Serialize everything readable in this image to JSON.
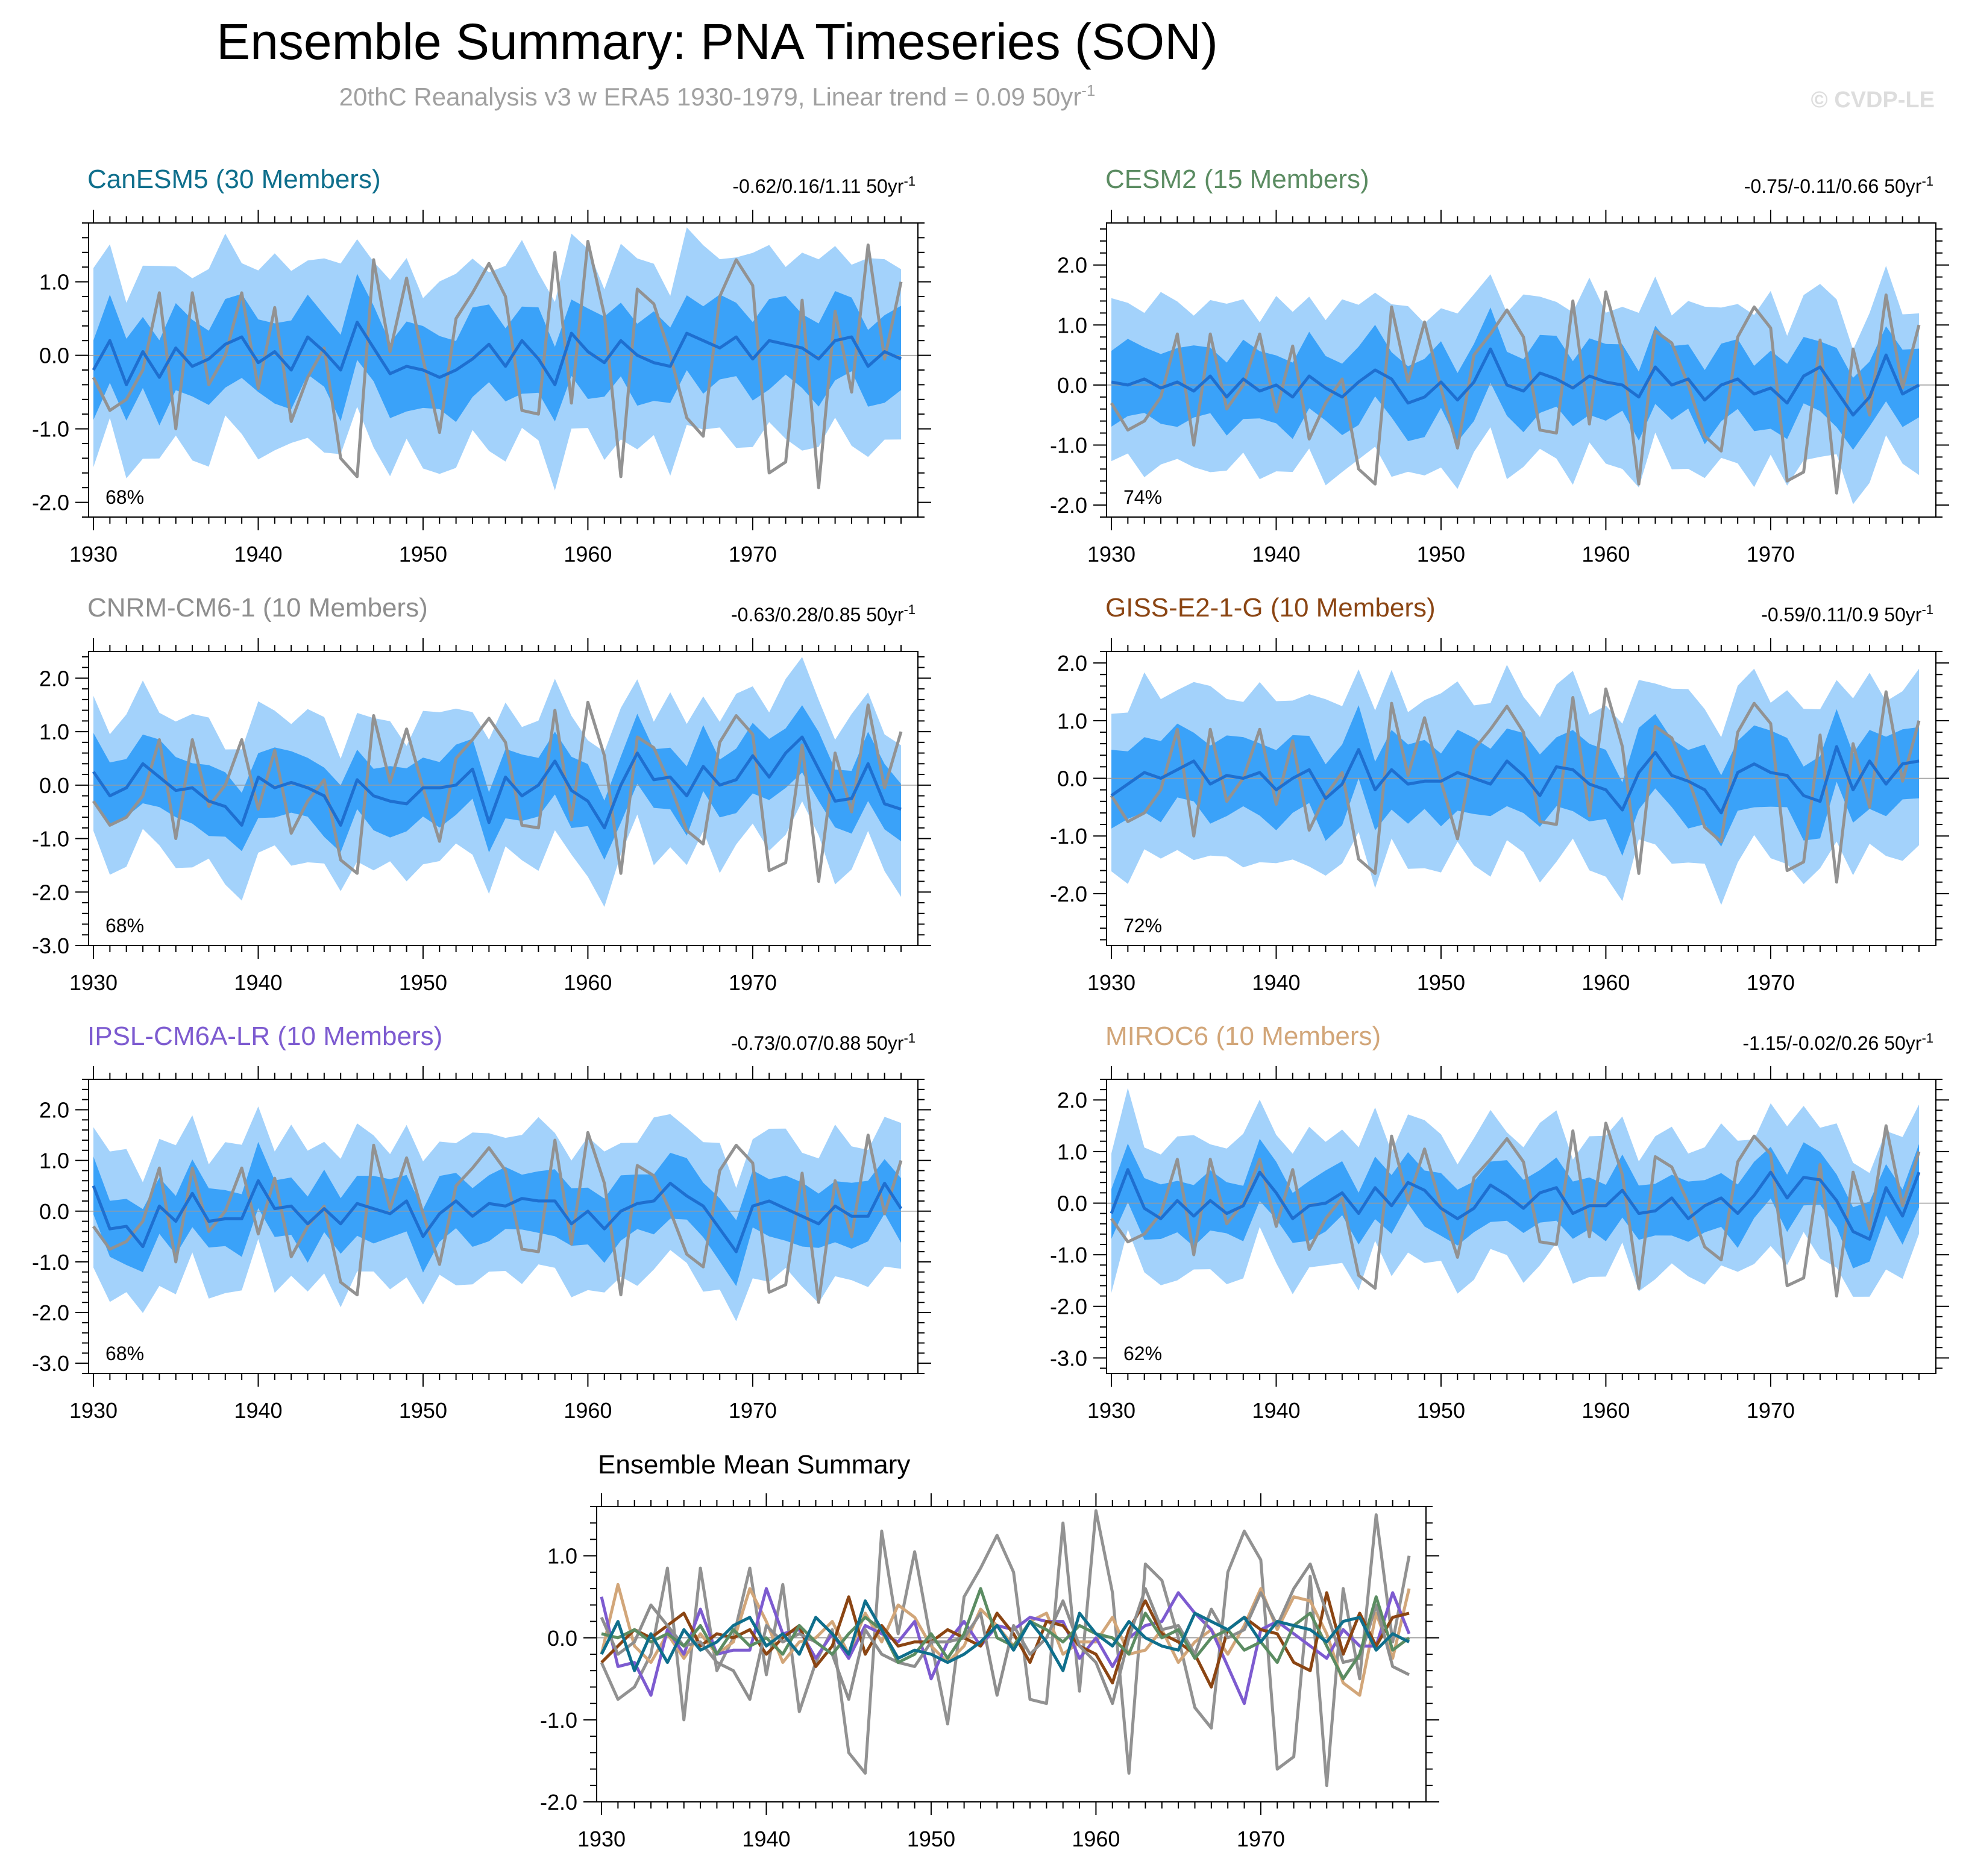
{
  "page": {
    "title": "Ensemble Summary: PNA Timeseries (SON)",
    "subtitle": "20thC Reanalysis v3 w ERA5 1930-1979, Linear trend = 0.09 50yr",
    "subtitle_superscript": "-1",
    "watermark": "© CVDP-LE"
  },
  "colors": {
    "band_outer": "#a3d2fb",
    "band_inner": "#3aa2f9",
    "ensemble_mean": "#1e6fd0",
    "observation": "#929292"
  },
  "chart_data": [
    {
      "type": "area",
      "id": "canesm5",
      "title": "CanESM5 (30 Members)",
      "title_color": "#0f6f8c",
      "trend_label": "-0.62/0.16/1.11 50yr",
      "trend_superscript": "-1",
      "percent_label": "68%",
      "ylim": [
        -2.2,
        1.8
      ],
      "yticks": [
        -2.0,
        -1.0,
        0.0,
        1.0
      ],
      "ytick_labels": [
        "-2.0",
        "-1.0",
        "0.0",
        "1.0"
      ],
      "xlim": [
        1930,
        1979
      ],
      "xticks": [
        1930,
        1940,
        1950,
        1960,
        1970
      ],
      "ens_mean": [
        -0.2,
        0.2,
        -0.4,
        0.05,
        -0.3,
        0.1,
        -0.15,
        -0.05,
        0.15,
        0.25,
        -0.1,
        0.05,
        -0.2,
        0.25,
        0.05,
        -0.2,
        0.45,
        0.1,
        -0.25,
        -0.15,
        -0.2,
        -0.3,
        -0.2,
        -0.05,
        0.15,
        -0.15,
        0.2,
        -0.05,
        -0.4,
        0.3,
        0.05,
        -0.1,
        0.2,
        0.0,
        -0.1,
        -0.15,
        0.3,
        0.2,
        0.1,
        0.25,
        -0.05,
        0.2,
        0.15,
        0.1,
        -0.05,
        0.2,
        0.25,
        -0.15,
        0.05,
        -0.05
      ],
      "inner_spread": 0.55,
      "outer_spread": 1.25
    },
    {
      "type": "area",
      "id": "cesm2",
      "title": "CESM2 (15 Members)",
      "title_color": "#5b8c62",
      "trend_label": "-0.75/-0.11/0.66 50yr",
      "trend_superscript": "-1",
      "percent_label": "74%",
      "ylim": [
        -2.2,
        2.7
      ],
      "yticks": [
        -2.0,
        -1.0,
        0.0,
        1.0,
        2.0
      ],
      "ytick_labels": [
        "-2.0",
        "-1.0",
        "0.0",
        "1.0",
        "2.0"
      ],
      "xlim": [
        1930,
        1979
      ],
      "xticks": [
        1930,
        1940,
        1950,
        1960,
        1970
      ],
      "ens_mean": [
        0.05,
        0.0,
        0.1,
        -0.05,
        0.05,
        -0.1,
        0.15,
        -0.2,
        0.1,
        -0.1,
        0.0,
        -0.2,
        0.15,
        -0.05,
        -0.2,
        0.05,
        0.25,
        0.1,
        -0.3,
        -0.2,
        0.05,
        -0.25,
        0.05,
        0.6,
        0.0,
        -0.1,
        0.2,
        0.1,
        -0.05,
        0.15,
        0.05,
        0.0,
        -0.2,
        0.3,
        0.0,
        0.1,
        -0.25,
        0.0,
        0.1,
        -0.15,
        -0.05,
        -0.3,
        0.15,
        0.3,
        -0.1,
        -0.5,
        -0.2,
        0.5,
        -0.15,
        0.0
      ],
      "inner_spread": 0.6,
      "outer_spread": 1.35
    },
    {
      "type": "area",
      "id": "cnrm",
      "title": "CNRM-CM6-1 (10 Members)",
      "title_color": "#8e8e8e",
      "trend_label": "-0.63/0.28/0.85 50yr",
      "trend_superscript": "-1",
      "percent_label": "68%",
      "ylim": [
        -3.0,
        2.5
      ],
      "yticks": [
        -3.0,
        -2.0,
        -1.0,
        0.0,
        1.0,
        2.0
      ],
      "ytick_labels": [
        "-3.0",
        "-2.0",
        "-1.0",
        "0.0",
        "1.0",
        "2.0"
      ],
      "xlim": [
        1930,
        1979
      ],
      "xticks": [
        1930,
        1940,
        1950,
        1960,
        1970
      ],
      "ens_mean": [
        0.25,
        -0.2,
        -0.05,
        0.4,
        0.15,
        -0.1,
        -0.05,
        -0.3,
        -0.4,
        -0.75,
        0.15,
        -0.05,
        0.05,
        -0.05,
        -0.2,
        -0.75,
        0.1,
        -0.2,
        -0.3,
        -0.35,
        -0.05,
        -0.05,
        0.0,
        0.3,
        -0.7,
        0.15,
        -0.2,
        0.0,
        0.45,
        -0.1,
        -0.3,
        -0.8,
        0.0,
        0.6,
        0.1,
        0.15,
        -0.2,
        0.35,
        0.0,
        0.1,
        0.55,
        0.15,
        0.6,
        0.9,
        0.3,
        -0.3,
        -0.25,
        0.4,
        -0.35,
        -0.45
      ],
      "inner_spread": 0.6,
      "outer_spread": 1.35
    },
    {
      "type": "area",
      "id": "giss",
      "title": "GISS-E2-1-G (10 Members)",
      "title_color": "#8b4513",
      "trend_label": "-0.59/0.11/0.9 50yr",
      "trend_superscript": "-1",
      "percent_label": "72%",
      "ylim": [
        -2.9,
        2.2
      ],
      "yticks": [
        -2.0,
        -1.0,
        0.0,
        1.0,
        2.0
      ],
      "ytick_labels": [
        "-2.0",
        "-1.0",
        "0.0",
        "1.0",
        "2.0"
      ],
      "xlim": [
        1930,
        1979
      ],
      "xticks": [
        1930,
        1940,
        1950,
        1960,
        1970
      ],
      "ens_mean": [
        -0.3,
        -0.1,
        0.1,
        0.0,
        0.15,
        0.3,
        -0.1,
        0.05,
        0.0,
        0.1,
        -0.2,
        0.0,
        0.15,
        -0.35,
        -0.1,
        0.5,
        -0.2,
        0.15,
        -0.1,
        -0.05,
        -0.05,
        0.1,
        0.0,
        -0.1,
        0.3,
        0.05,
        -0.3,
        0.2,
        0.15,
        -0.1,
        -0.2,
        -0.55,
        0.1,
        0.45,
        0.05,
        -0.05,
        -0.2,
        -0.6,
        0.1,
        0.25,
        0.1,
        0.05,
        -0.3,
        -0.4,
        0.55,
        -0.2,
        0.3,
        -0.1,
        0.25,
        0.3
      ],
      "inner_spread": 0.65,
      "outer_spread": 1.45
    },
    {
      "type": "area",
      "id": "ipsl",
      "title": "IPSL-CM6A-LR (10 Members)",
      "title_color": "#7d5bd0",
      "trend_label": "-0.73/0.07/0.88 50yr",
      "trend_superscript": "-1",
      "percent_label": "68%",
      "ylim": [
        -3.2,
        2.6
      ],
      "yticks": [
        -3.0,
        -2.0,
        -1.0,
        0.0,
        1.0,
        2.0
      ],
      "ytick_labels": [
        "-3.0",
        "-2.0",
        "-1.0",
        "0.0",
        "1.0",
        "2.0"
      ],
      "xlim": [
        1930,
        1979
      ],
      "xticks": [
        1930,
        1940,
        1950,
        1960,
        1970
      ],
      "ens_mean": [
        0.5,
        -0.35,
        -0.3,
        -0.7,
        0.1,
        -0.2,
        0.35,
        -0.2,
        -0.15,
        -0.15,
        0.6,
        0.05,
        0.1,
        -0.25,
        0.05,
        -0.25,
        0.15,
        0.05,
        -0.05,
        0.2,
        -0.5,
        -0.05,
        0.2,
        -0.1,
        0.15,
        0.1,
        0.25,
        0.2,
        0.2,
        -0.25,
        0.0,
        -0.35,
        0.0,
        0.15,
        0.2,
        0.55,
        0.3,
        0.1,
        -0.35,
        -0.8,
        0.1,
        0.2,
        0.05,
        -0.1,
        -0.25,
        0.1,
        -0.1,
        -0.1,
        0.55,
        0.05
      ],
      "inner_spread": 0.6,
      "outer_spread": 1.4
    },
    {
      "type": "area",
      "id": "miroc6",
      "title": "MIROC6 (10 Members)",
      "title_color": "#d2a679",
      "trend_label": "-1.15/-0.02/0.26 50yr",
      "trend_superscript": "-1",
      "percent_label": "62%",
      "ylim": [
        -3.3,
        2.4
      ],
      "yticks": [
        -3.0,
        -2.0,
        -1.0,
        0.0,
        1.0,
        2.0
      ],
      "ytick_labels": [
        "-3.0",
        "-2.0",
        "-1.0",
        "0.0",
        "1.0",
        "2.0"
      ],
      "xlim": [
        1930,
        1979
      ],
      "xticks": [
        1930,
        1940,
        1950,
        1960,
        1970
      ],
      "ens_mean": [
        -0.2,
        0.65,
        -0.1,
        -0.3,
        0.05,
        -0.25,
        0.05,
        -0.2,
        -0.05,
        0.6,
        0.2,
        -0.3,
        -0.05,
        0.0,
        0.2,
        -0.2,
        0.3,
        -0.05,
        0.4,
        0.25,
        -0.1,
        -0.3,
        -0.1,
        0.35,
        0.15,
        -0.1,
        0.2,
        0.3,
        -0.2,
        -0.05,
        -0.05,
        0.25,
        -0.2,
        -0.15,
        0.1,
        -0.3,
        -0.05,
        0.1,
        -0.2,
        0.15,
        0.6,
        0.1,
        0.5,
        0.45,
        0.05,
        -0.55,
        -0.7,
        0.3,
        -0.25,
        0.6
      ],
      "inner_spread": 0.55,
      "outer_spread": 1.3
    },
    {
      "type": "line",
      "id": "ensemble-mean-summary",
      "title": "Ensemble Mean Summary",
      "title_color": "#000000",
      "ylim": [
        -2.0,
        1.6
      ],
      "yticks": [
        -2.0,
        -1.0,
        0.0,
        1.0
      ],
      "ytick_labels": [
        "-2.0",
        "-1.0",
        "0.0",
        "1.0"
      ],
      "xlim": [
        1930,
        1979
      ],
      "xticks": [
        1930,
        1940,
        1950,
        1960,
        1970
      ],
      "series": [
        {
          "name": "CanESM5",
          "color": "#0f6f8c"
        },
        {
          "name": "CESM2",
          "color": "#5b8c62"
        },
        {
          "name": "CNRM-CM6-1",
          "color": "#8e8e8e"
        },
        {
          "name": "GISS-E2-1-G",
          "color": "#8b4513"
        },
        {
          "name": "IPSL-CM6A-LR",
          "color": "#7d5bd0"
        },
        {
          "name": "MIROC6",
          "color": "#d2a679"
        },
        {
          "name": "20thC Reanalysis v3 w ERA5",
          "color": "#929292"
        }
      ]
    }
  ],
  "observation": {
    "name": "20thC Reanalysis v3 w ERA5",
    "years_start": 1930,
    "values": [
      -0.3,
      -0.75,
      -0.6,
      -0.2,
      0.85,
      -1.0,
      0.85,
      -0.4,
      0.0,
      0.85,
      -0.45,
      0.65,
      -0.9,
      -0.3,
      0.1,
      -1.4,
      -1.65,
      1.3,
      0.05,
      1.05,
      -0.05,
      -1.05,
      0.5,
      0.85,
      1.25,
      0.8,
      -0.75,
      -0.8,
      1.4,
      -0.65,
      1.55,
      0.55,
      -1.65,
      0.9,
      0.7,
      0.0,
      -0.85,
      -1.1,
      0.8,
      1.3,
      0.95,
      -1.6,
      -1.45,
      0.75,
      -1.8,
      0.6,
      -0.5,
      1.5,
      -0.05,
      1.0
    ]
  }
}
